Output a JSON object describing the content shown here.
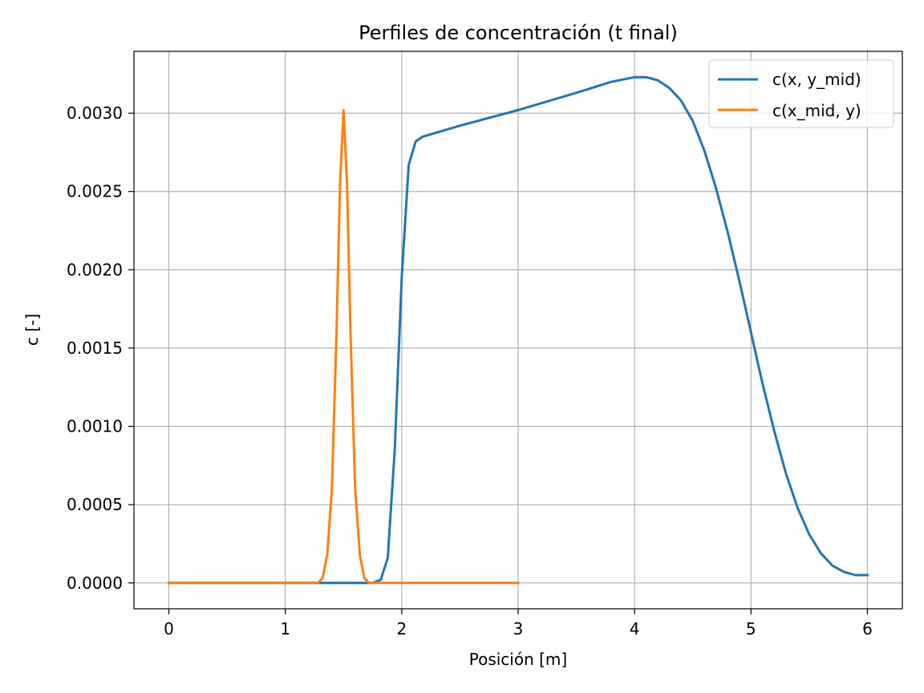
{
  "chart_data": {
    "type": "line",
    "title": "Perfiles de concentración (t final)",
    "xlabel": "Posición [m]",
    "ylabel": "c [-]",
    "xlim": [
      -0.3,
      6.3
    ],
    "ylim": [
      -0.000165,
      0.003395
    ],
    "xticks": [
      0,
      1,
      2,
      3,
      4,
      5,
      6
    ],
    "xtick_labels": [
      "0",
      "1",
      "2",
      "3",
      "4",
      "5",
      "6"
    ],
    "yticks": [
      0,
      0.0005,
      0.001,
      0.0015,
      0.002,
      0.0025,
      0.003
    ],
    "ytick_labels": [
      "0.0000",
      "0.0005",
      "0.0010",
      "0.0015",
      "0.0020",
      "0.0025",
      "0.0030"
    ],
    "grid": true,
    "legend_position": "top-right",
    "series": [
      {
        "name": "c(x, y_mid)",
        "color": "#1f77b4",
        "x": [
          0,
          1.3,
          1.75,
          1.82,
          1.88,
          1.94,
          2.0,
          2.06,
          2.12,
          2.18,
          2.5,
          3.0,
          3.5,
          3.8,
          4.0,
          4.1,
          4.2,
          4.3,
          4.4,
          4.5,
          4.6,
          4.7,
          4.8,
          4.9,
          5.0,
          5.1,
          5.2,
          5.3,
          5.4,
          5.5,
          5.6,
          5.7,
          5.8,
          5.9,
          5.95,
          6.0
        ],
        "y": [
          0,
          0,
          0,
          2e-05,
          0.00016,
          0.00085,
          0.00195,
          0.00267,
          0.00282,
          0.00285,
          0.00292,
          0.00302,
          0.00313,
          0.0032,
          0.00323,
          0.00323,
          0.00321,
          0.00316,
          0.00308,
          0.00295,
          0.00276,
          0.00252,
          0.00224,
          0.00193,
          0.0016,
          0.00127,
          0.00097,
          0.0007,
          0.00048,
          0.00031,
          0.00019,
          0.00011,
          7e-05,
          5e-05,
          5e-05,
          5e-05
        ]
      },
      {
        "name": "c(x_mid, y)",
        "color": "#ff7f0e",
        "x": [
          0,
          1.28,
          1.32,
          1.36,
          1.4,
          1.44,
          1.47,
          1.5,
          1.53,
          1.56,
          1.6,
          1.64,
          1.68,
          1.72,
          3.0
        ],
        "y": [
          0,
          0,
          3e-05,
          0.00018,
          0.0006,
          0.0016,
          0.00255,
          0.00302,
          0.00255,
          0.0016,
          0.0006,
          0.00018,
          3e-05,
          0,
          0
        ]
      }
    ]
  }
}
